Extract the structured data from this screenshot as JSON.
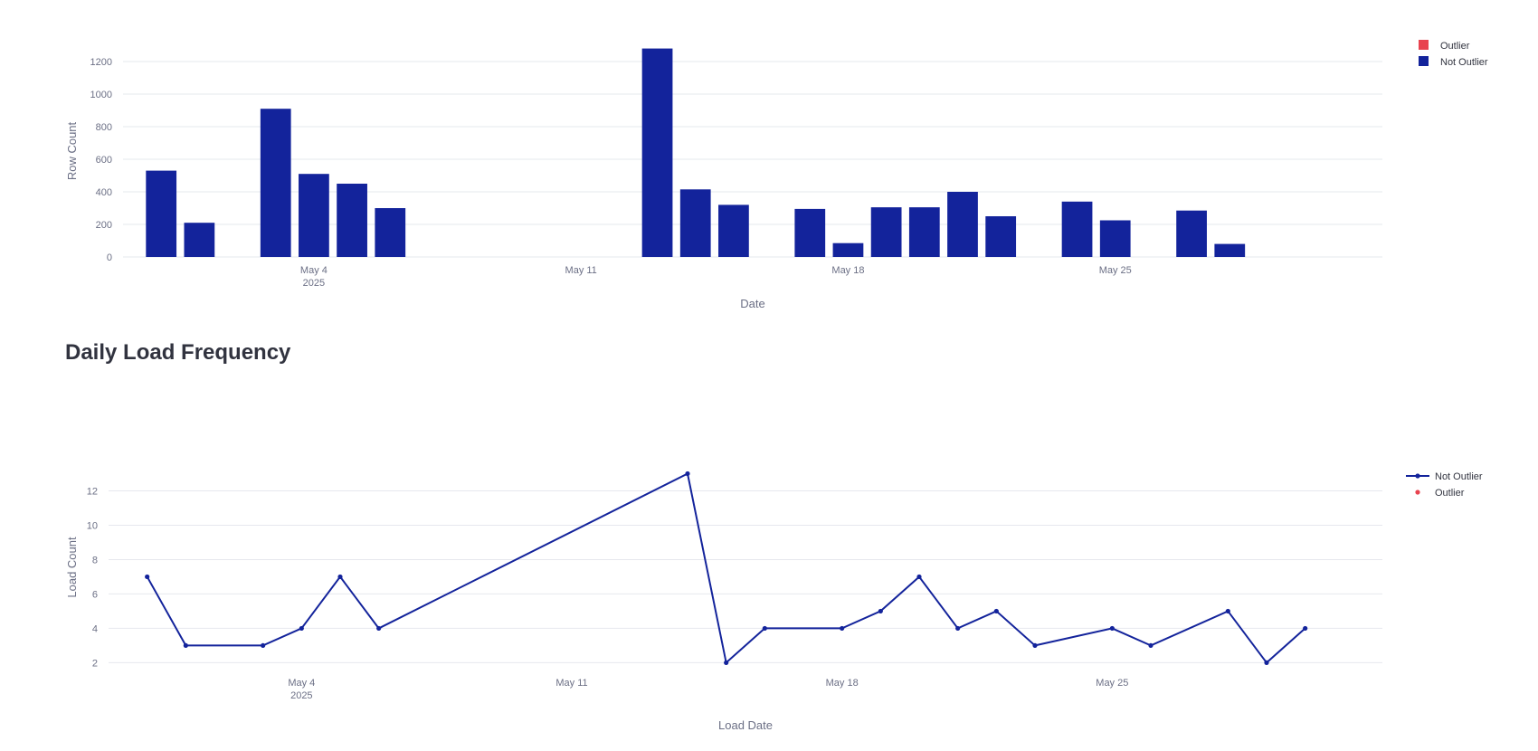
{
  "section_title": "Daily Load Frequency",
  "colors": {
    "not_outlier": "#13239b",
    "outlier": "#e8434f",
    "grid": "#e6e8ee",
    "text": "#6b6f85"
  },
  "chart_data": [
    {
      "type": "bar",
      "xlabel": "Date",
      "ylabel": "Row Count",
      "ylim": [
        0,
        1300
      ],
      "yticks": [
        0,
        200,
        400,
        600,
        800,
        1000,
        1200
      ],
      "xlim": [
        "2025-04-29",
        "2025-06-01"
      ],
      "xticks": [
        {
          "date": "2025-05-04",
          "label": "May 4",
          "sub": "2025"
        },
        {
          "date": "2025-05-11",
          "label": "May 11",
          "sub": ""
        },
        {
          "date": "2025-05-18",
          "label": "May 18",
          "sub": ""
        },
        {
          "date": "2025-05-25",
          "label": "May 25",
          "sub": ""
        }
      ],
      "legend": {
        "position": "top-right",
        "entries": [
          "Outlier",
          "Not Outlier"
        ]
      },
      "series": [
        {
          "name": "Not Outlier",
          "color": "#13239b",
          "points": [
            {
              "x": "2025-04-30",
              "y": 530
            },
            {
              "x": "2025-05-01",
              "y": 210
            },
            {
              "x": "2025-05-03",
              "y": 910
            },
            {
              "x": "2025-05-04",
              "y": 510
            },
            {
              "x": "2025-05-05",
              "y": 450
            },
            {
              "x": "2025-05-06",
              "y": 300
            },
            {
              "x": "2025-05-13",
              "y": 1280
            },
            {
              "x": "2025-05-14",
              "y": 415
            },
            {
              "x": "2025-05-15",
              "y": 320
            },
            {
              "x": "2025-05-17",
              "y": 295
            },
            {
              "x": "2025-05-18",
              "y": 85
            },
            {
              "x": "2025-05-19",
              "y": 305
            },
            {
              "x": "2025-05-20",
              "y": 305
            },
            {
              "x": "2025-05-21",
              "y": 400
            },
            {
              "x": "2025-05-22",
              "y": 250
            },
            {
              "x": "2025-05-24",
              "y": 340
            },
            {
              "x": "2025-05-25",
              "y": 225
            },
            {
              "x": "2025-05-27",
              "y": 285
            },
            {
              "x": "2025-05-28",
              "y": 80
            }
          ]
        },
        {
          "name": "Outlier",
          "color": "#e8434f",
          "points": []
        }
      ]
    },
    {
      "type": "line",
      "xlabel": "Load Date",
      "ylabel": "Load Count",
      "ylim": [
        1.6,
        13.5
      ],
      "yticks": [
        2,
        4,
        6,
        8,
        10,
        12
      ],
      "xlim": [
        "2025-04-29",
        "2025-06-01"
      ],
      "xticks": [
        {
          "date": "2025-05-04",
          "label": "May 4",
          "sub": "2025"
        },
        {
          "date": "2025-05-11",
          "label": "May 11",
          "sub": ""
        },
        {
          "date": "2025-05-18",
          "label": "May 18",
          "sub": ""
        },
        {
          "date": "2025-05-25",
          "label": "May 25",
          "sub": ""
        }
      ],
      "legend": {
        "position": "top-right",
        "entries": [
          "Not Outlier",
          "Outlier"
        ]
      },
      "series": [
        {
          "name": "Not Outlier",
          "color": "#13239b",
          "points": [
            {
              "x": "2025-04-30",
              "y": 7
            },
            {
              "x": "2025-05-01",
              "y": 3
            },
            {
              "x": "2025-05-03",
              "y": 3
            },
            {
              "x": "2025-05-04",
              "y": 4
            },
            {
              "x": "2025-05-05",
              "y": 7
            },
            {
              "x": "2025-05-06",
              "y": 4
            },
            {
              "x": "2025-05-14",
              "y": 13
            },
            {
              "x": "2025-05-15",
              "y": 2
            },
            {
              "x": "2025-05-16",
              "y": 4
            },
            {
              "x": "2025-05-18",
              "y": 4
            },
            {
              "x": "2025-05-19",
              "y": 5
            },
            {
              "x": "2025-05-20",
              "y": 7
            },
            {
              "x": "2025-05-21",
              "y": 4
            },
            {
              "x": "2025-05-22",
              "y": 5
            },
            {
              "x": "2025-05-23",
              "y": 3
            },
            {
              "x": "2025-05-25",
              "y": 4
            },
            {
              "x": "2025-05-26",
              "y": 3
            },
            {
              "x": "2025-05-28",
              "y": 5
            },
            {
              "x": "2025-05-29",
              "y": 2
            },
            {
              "x": "2025-05-30",
              "y": 4
            }
          ]
        },
        {
          "name": "Outlier",
          "color": "#e8434f",
          "points": []
        }
      ]
    }
  ]
}
